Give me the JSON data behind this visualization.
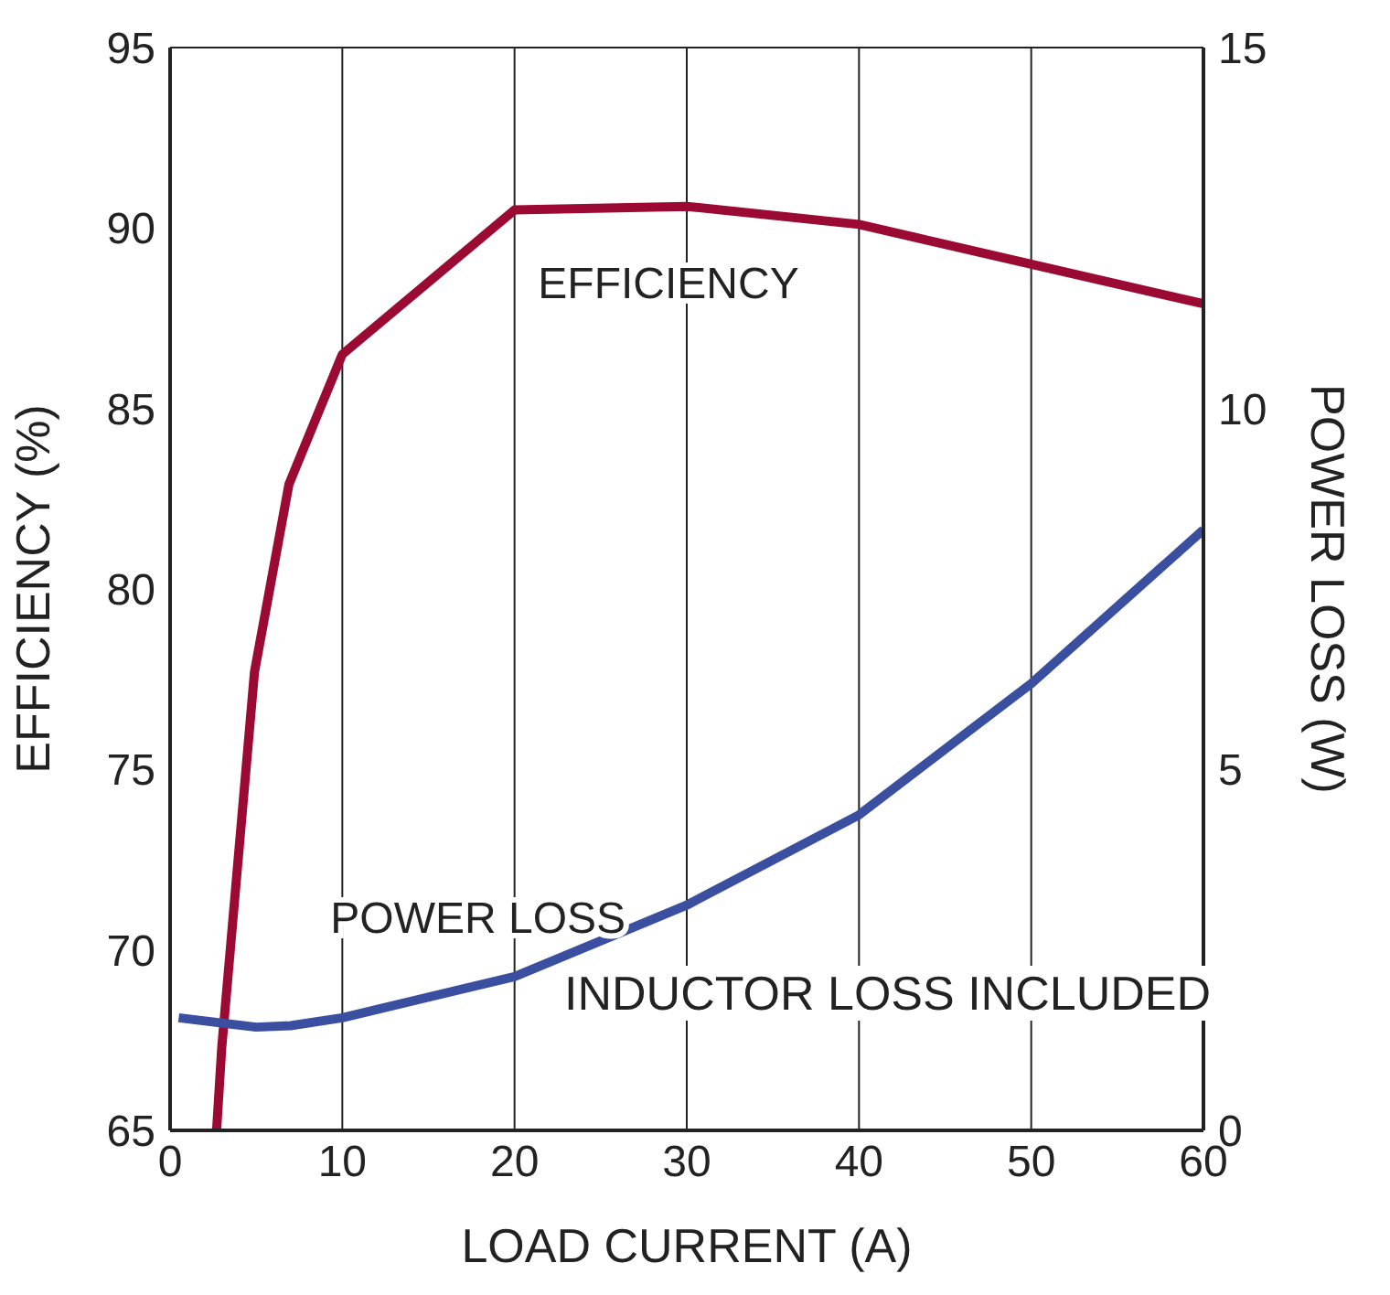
{
  "chart_data": {
    "type": "line",
    "xlabel": "LOAD CURRENT (A)",
    "ylabel": "EFFICIENCY (%)",
    "y2label": "POWER LOSS (W)",
    "xlim": [
      0,
      60
    ],
    "xticks": [
      0,
      10,
      20,
      30,
      40,
      50,
      60
    ],
    "ylim": [
      65,
      95
    ],
    "yticks": [
      65,
      70,
      75,
      80,
      85,
      90,
      95
    ],
    "y2lim": [
      0,
      15
    ],
    "y2ticks": [
      0,
      5,
      10,
      15
    ],
    "grid": true,
    "legend": false,
    "marker": "none",
    "line_style": "solid",
    "series": [
      {
        "name": "EFFICIENCY",
        "color": "#9b0a32",
        "x": [
          2.7,
          3,
          4.9,
          6.9,
          10,
          20,
          30,
          40,
          50,
          60
        ],
        "values": [
          65,
          67.3,
          77.7,
          82.9,
          86.5,
          90.5,
          90.6,
          90.1,
          89,
          87.9
        ]
      },
      {
        "name": "POWER LOSS",
        "color": "#3a4fa0",
        "axis": "y2",
        "x": [
          0.5,
          5,
          7,
          10,
          20,
          30,
          40,
          50,
          60
        ],
        "values": [
          1.56,
          1.43,
          1.45,
          1.56,
          2.13,
          3.12,
          4.37,
          6.19,
          8.32
        ]
      }
    ],
    "annotations": [
      "INDUCTOR LOSS INCLUDED"
    ]
  }
}
